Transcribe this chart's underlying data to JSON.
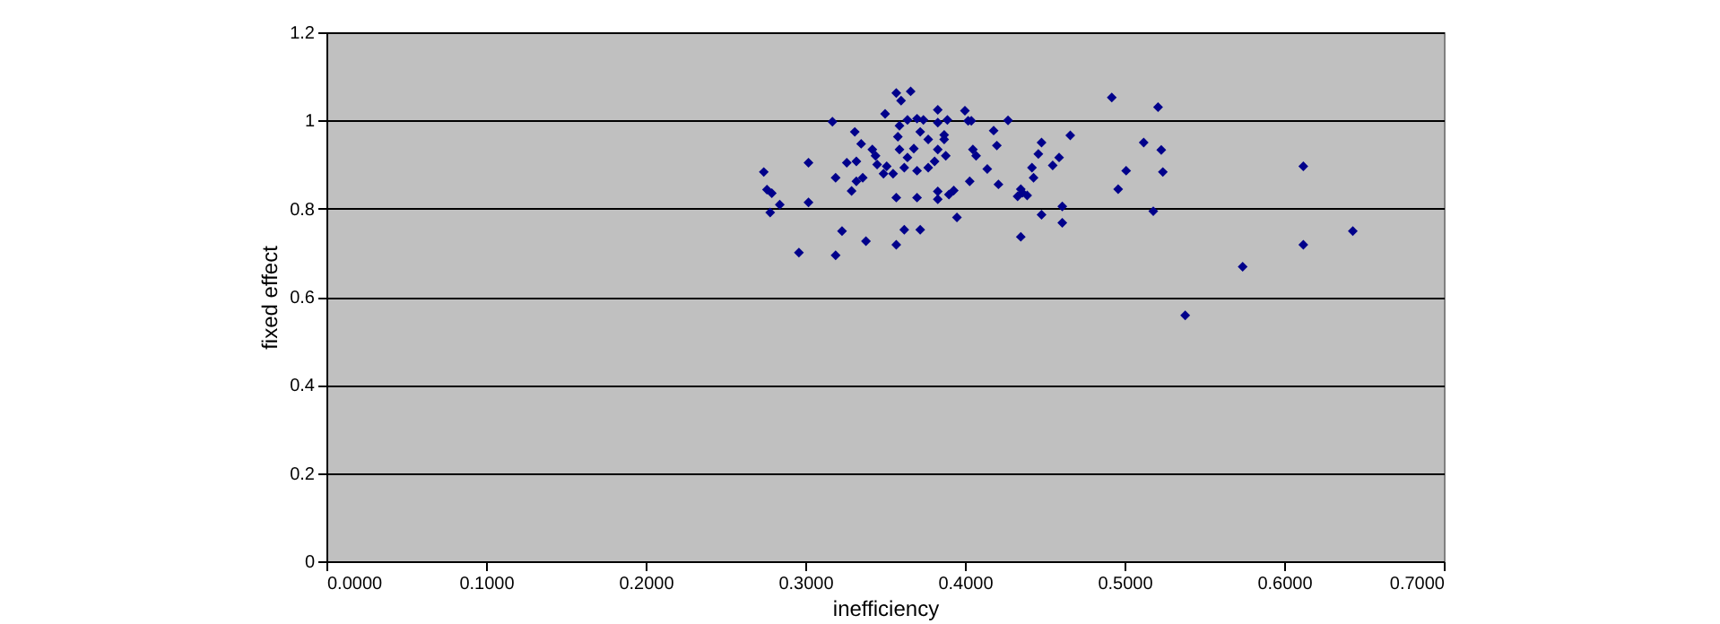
{
  "chart_data": {
    "type": "scatter",
    "xlabel": "inefficiency",
    "ylabel": "fixed effect",
    "xlim": [
      0,
      0.7
    ],
    "ylim": [
      0,
      1.2
    ],
    "xticks": [
      {
        "value": 0,
        "label": "0.0000"
      },
      {
        "value": 0.1,
        "label": "0.1000"
      },
      {
        "value": 0.2,
        "label": "0.2000"
      },
      {
        "value": 0.3,
        "label": "0.3000"
      },
      {
        "value": 0.4,
        "label": "0.4000"
      },
      {
        "value": 0.5,
        "label": "0.5000"
      },
      {
        "value": 0.6,
        "label": "0.6000"
      },
      {
        "value": 0.7,
        "label": "0.7000"
      }
    ],
    "yticks": [
      0,
      0.2,
      0.4,
      0.6,
      0.8,
      1,
      1.2
    ],
    "grid": "y",
    "marker": "diamond",
    "x": [
      0.274,
      0.302,
      0.317,
      0.276,
      0.279,
      0.284,
      0.278,
      0.302,
      0.296,
      0.319,
      0.323,
      0.338,
      0.357,
      0.362,
      0.372,
      0.319,
      0.329,
      0.332,
      0.336,
      0.326,
      0.332,
      0.331,
      0.335,
      0.342,
      0.344,
      0.345,
      0.351,
      0.35,
      0.357,
      0.366,
      0.36,
      0.359,
      0.364,
      0.37,
      0.374,
      0.359,
      0.358,
      0.372,
      0.377,
      0.368,
      0.364,
      0.355,
      0.349,
      0.362,
      0.37,
      0.377,
      0.357,
      0.37,
      0.383,
      0.389,
      0.383,
      0.387,
      0.387,
      0.383,
      0.388,
      0.381,
      0.383,
      0.383,
      0.39,
      0.393,
      0.395,
      0.4,
      0.402,
      0.404,
      0.405,
      0.407,
      0.403,
      0.418,
      0.42,
      0.414,
      0.421,
      0.492,
      0.521,
      0.427,
      0.466,
      0.448,
      0.446,
      0.459,
      0.455,
      0.442,
      0.443,
      0.435,
      0.433,
      0.439,
      0.436,
      0.461,
      0.448,
      0.461,
      0.435,
      0.512,
      0.523,
      0.501,
      0.524,
      0.496,
      0.518,
      0.538,
      0.612,
      0.643,
      0.612,
      0.574
    ],
    "series": [
      {
        "color": "#00008b",
        "values": [
          0.883,
          0.904,
          0.997,
          0.843,
          0.835,
          0.809,
          0.791,
          0.814,
          0.7,
          0.694,
          0.749,
          0.726,
          0.718,
          0.752,
          0.752,
          0.87,
          0.84,
          0.862,
          0.87,
          0.904,
          0.907,
          0.974,
          0.947,
          0.934,
          0.92,
          0.9,
          0.896,
          1.015,
          1.062,
          1.066,
          1.045,
          0.988,
          1.001,
          1.004,
          1.001,
          0.934,
          0.963,
          0.974,
          0.957,
          0.936,
          0.916,
          0.879,
          0.879,
          0.893,
          0.886,
          0.893,
          0.825,
          0.825,
          1.024,
          1.001,
          0.995,
          0.967,
          0.957,
          0.934,
          0.92,
          0.907,
          0.839,
          0.821,
          0.832,
          0.841,
          0.78,
          1.022,
          0.999,
          0.999,
          0.934,
          0.92,
          0.862,
          0.977,
          0.943,
          0.89,
          0.855,
          1.052,
          1.03,
          1.0,
          0.966,
          0.95,
          0.924,
          0.916,
          0.898,
          0.893,
          0.87,
          0.844,
          0.828,
          0.83,
          0.836,
          0.805,
          0.786,
          0.768,
          0.736,
          0.95,
          0.933,
          0.886,
          0.883,
          0.844,
          0.794,
          0.558,
          0.896,
          0.749,
          0.718,
          0.668
        ]
      }
    ]
  }
}
